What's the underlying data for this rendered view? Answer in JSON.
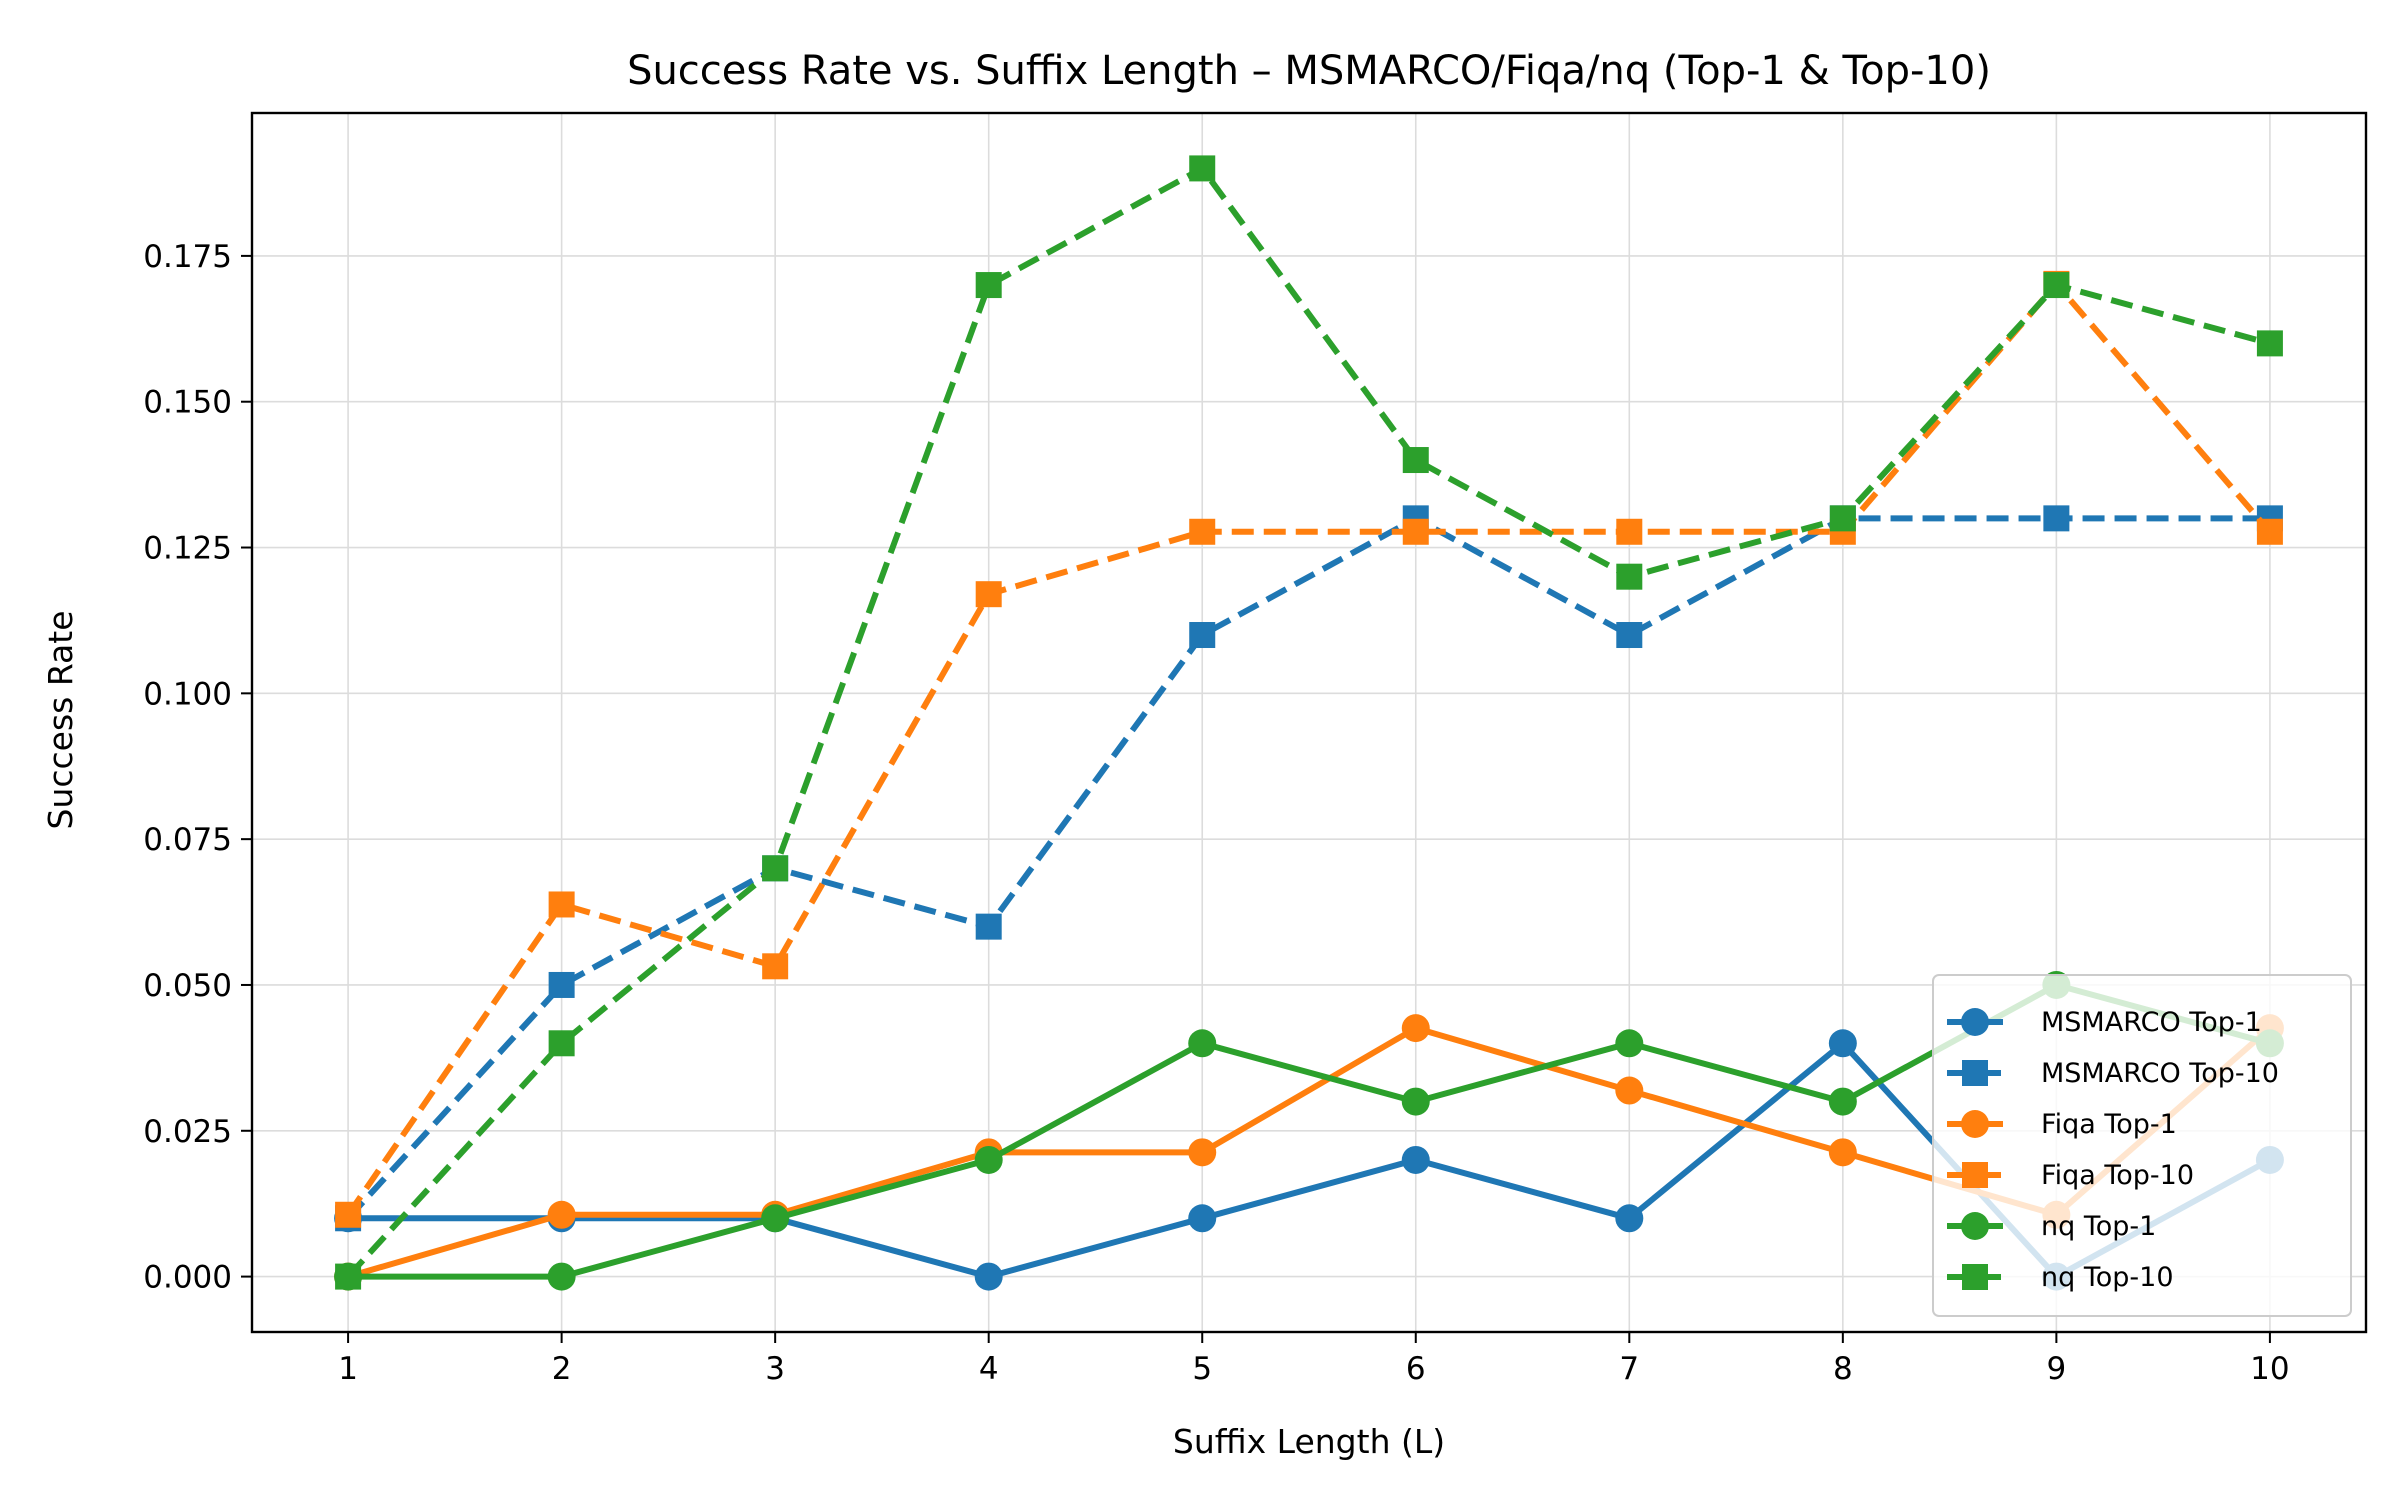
{
  "chart_data": {
    "type": "line",
    "title": "Success Rate vs. Suffix Length – MSMARCO/Fiqa/nq (Top-1 & Top-10)",
    "xlabel": "Suffix Length (L)",
    "ylabel": "Success Rate",
    "x": [
      1,
      2,
      3,
      4,
      5,
      6,
      7,
      8,
      9,
      10
    ],
    "xticks": [
      "1",
      "2",
      "3",
      "4",
      "5",
      "6",
      "7",
      "8",
      "9",
      "10"
    ],
    "xlim": [
      0.55,
      10.45
    ],
    "ylim": [
      -0.0095,
      0.1995
    ],
    "yticks": [
      "0.000",
      "0.025",
      "0.050",
      "0.075",
      "0.100",
      "0.125",
      "0.150",
      "0.175"
    ],
    "ytick_values": [
      0,
      0.025,
      0.05,
      0.075,
      0.1,
      0.125,
      0.15,
      0.175
    ],
    "grid": true,
    "legend_position": "lower-right",
    "series": [
      {
        "name": "MSMARCO Top-1",
        "color": "#1f77b4",
        "linestyle": "solid",
        "marker": "circle",
        "values": [
          0.01,
          0.01,
          0.01,
          0.0,
          0.01,
          0.02,
          0.01,
          0.04,
          0.0,
          0.02
        ]
      },
      {
        "name": "MSMARCO Top-10",
        "color": "#1f77b4",
        "linestyle": "dashed",
        "marker": "square",
        "values": [
          0.01,
          0.05,
          0.07,
          0.06,
          0.11,
          0.13,
          0.11,
          0.13,
          0.13,
          0.13
        ]
      },
      {
        "name": "Fiqa Top-1",
        "color": "#ff7f0e",
        "linestyle": "solid",
        "marker": "circle",
        "values": [
          0.0,
          0.0106,
          0.0106,
          0.0213,
          0.0213,
          0.0426,
          0.0319,
          0.0213,
          0.0106,
          0.0426
        ]
      },
      {
        "name": "Fiqa Top-10",
        "color": "#ff7f0e",
        "linestyle": "dashed",
        "marker": "square",
        "values": [
          0.0106,
          0.0638,
          0.0532,
          0.117,
          0.1277,
          0.1277,
          0.1277,
          0.1277,
          0.1702,
          0.1277
        ]
      },
      {
        "name": "nq Top-1",
        "color": "#2ca02c",
        "linestyle": "solid",
        "marker": "circle",
        "values": [
          0.0,
          0.0,
          0.01,
          0.02,
          0.04,
          0.03,
          0.04,
          0.03,
          0.05,
          0.04
        ]
      },
      {
        "name": "nq Top-10",
        "color": "#2ca02c",
        "linestyle": "dashed",
        "marker": "square",
        "values": [
          0.0,
          0.04,
          0.07,
          0.17,
          0.19,
          0.14,
          0.12,
          0.13,
          0.17,
          0.16
        ]
      }
    ]
  }
}
